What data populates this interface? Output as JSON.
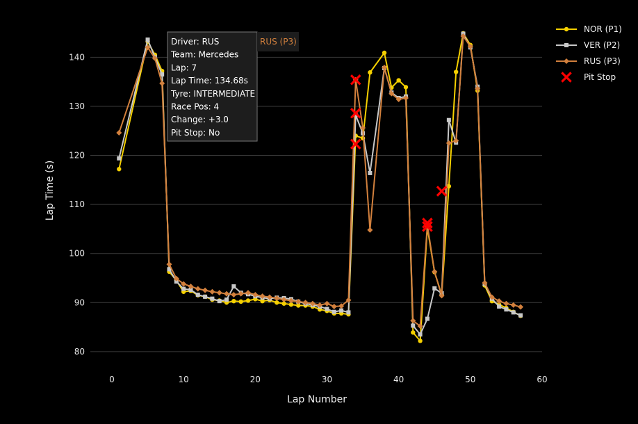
{
  "chart_data": {
    "type": "line",
    "title": "",
    "xlabel": "Lap Number",
    "ylabel": "Lap Time (s)",
    "xlim": [
      -3,
      60
    ],
    "ylim": [
      78,
      146
    ],
    "xticks": [
      0,
      10,
      20,
      30,
      40,
      50,
      60
    ],
    "yticks": [
      80,
      90,
      100,
      110,
      120,
      130,
      140
    ],
    "grid": "horizontal",
    "legend_position": "top-right",
    "series": [
      {
        "name": "NOR (P1)",
        "color": "#f5d000",
        "marker": "circle",
        "x": [
          1,
          5,
          6,
          7,
          8,
          9,
          10,
          11,
          12,
          13,
          14,
          15,
          16,
          17,
          18,
          19,
          20,
          21,
          22,
          23,
          24,
          25,
          26,
          27,
          28,
          29,
          30,
          31,
          32,
          33,
          34,
          35,
          36,
          38,
          39,
          40,
          41,
          42,
          43,
          44,
          45,
          46,
          47,
          48,
          49,
          50,
          51,
          52,
          53,
          54,
          55,
          56,
          57
        ],
        "y": [
          117.2,
          143.2,
          140.5,
          137.2,
          96.3,
          94.5,
          92.2,
          92.4,
          91.5,
          91.2,
          90.6,
          90.4,
          90.0,
          90.3,
          90.2,
          90.4,
          90.7,
          90.3,
          90.5,
          90.0,
          89.8,
          89.6,
          89.4,
          89.4,
          89.2,
          88.6,
          88.3,
          87.8,
          87.8,
          87.6,
          124.0,
          123.5,
          136.9,
          140.9,
          133.8,
          135.3,
          133.9,
          83.9,
          82.2,
          105.3,
          96.2,
          91.6,
          113.7,
          137.0,
          144.9,
          142.5,
          133.2,
          93.5,
          90.3,
          89.6,
          88.9,
          88.1,
          87.3
        ]
      },
      {
        "name": "VER (P2)",
        "color": "#c8c8c8",
        "marker": "square",
        "x": [
          1,
          5,
          6,
          7,
          8,
          9,
          10,
          11,
          12,
          13,
          14,
          15,
          16,
          17,
          18,
          19,
          20,
          21,
          22,
          23,
          24,
          25,
          26,
          27,
          28,
          29,
          30,
          31,
          32,
          33,
          34,
          35,
          36,
          38,
          39,
          40,
          41,
          42,
          43,
          44,
          45,
          46,
          47,
          48,
          49,
          50,
          51,
          52,
          53,
          54,
          55,
          56,
          57
        ],
        "y": [
          119.4,
          143.6,
          140.0,
          136.5,
          96.8,
          94.3,
          92.8,
          92.6,
          91.6,
          91.2,
          90.8,
          90.3,
          90.6,
          93.3,
          92.0,
          91.7,
          91.3,
          91.0,
          90.8,
          91.0,
          90.9,
          90.7,
          90.2,
          89.8,
          89.5,
          89.2,
          88.7,
          88.1,
          88.4,
          88.0,
          128.2,
          124.5,
          116.4,
          137.8,
          132.8,
          131.7,
          132.0,
          85.3,
          83.5,
          86.7,
          92.9,
          91.9,
          127.2,
          122.6,
          144.8,
          142.0,
          134.0,
          93.8,
          90.8,
          89.2,
          88.6,
          88.0,
          87.4
        ]
      },
      {
        "name": "RUS (P3)",
        "color": "#d2803d",
        "marker": "diamond",
        "x": [
          1,
          5,
          6,
          7,
          8,
          9,
          10,
          11,
          12,
          13,
          14,
          15,
          16,
          17,
          18,
          19,
          20,
          21,
          22,
          23,
          24,
          25,
          26,
          27,
          28,
          29,
          30,
          31,
          32,
          33,
          34,
          35,
          36,
          38,
          39,
          40,
          41,
          42,
          43,
          44,
          45,
          46,
          47,
          48,
          49,
          50,
          51,
          52,
          53,
          54,
          55,
          56,
          57
        ],
        "y": [
          124.6,
          142.0,
          139.8,
          134.68,
          97.8,
          94.9,
          93.8,
          93.3,
          92.8,
          92.5,
          92.2,
          92.0,
          91.8,
          91.6,
          91.8,
          92.0,
          91.6,
          91.3,
          91.1,
          90.9,
          90.6,
          90.4,
          90.2,
          90.0,
          89.8,
          89.5,
          89.8,
          89.2,
          89.3,
          90.5,
          135.4,
          125.6,
          104.8,
          137.9,
          132.6,
          131.4,
          131.7,
          86.3,
          85.2,
          105.8,
          96.3,
          91.4,
          122.5,
          123.0,
          144.3,
          142.2,
          133.6,
          94.0,
          91.1,
          90.3,
          89.8,
          89.5,
          89.1
        ]
      }
    ],
    "pit_stops": {
      "name": "Pit Stop",
      "color": "#ff0000",
      "marker": "x",
      "points": [
        {
          "x": 34,
          "y": 135.4
        },
        {
          "x": 34,
          "y": 128.6
        },
        {
          "x": 34,
          "y": 122.3
        },
        {
          "x": 44,
          "y": 106.2
        },
        {
          "x": 44,
          "y": 105.5
        },
        {
          "x": 46,
          "y": 112.7
        }
      ]
    },
    "tooltip": {
      "series_label": "RUS (P3)",
      "x": 7,
      "y": 134.68,
      "lines": [
        "Driver: RUS",
        "Team: Mercedes",
        "Lap: 7",
        "Lap Time: 134.68s",
        "Tyre: INTERMEDIATE",
        "Race Pos: 4",
        "Change: +3.0",
        "Pit Stop: No"
      ]
    }
  }
}
